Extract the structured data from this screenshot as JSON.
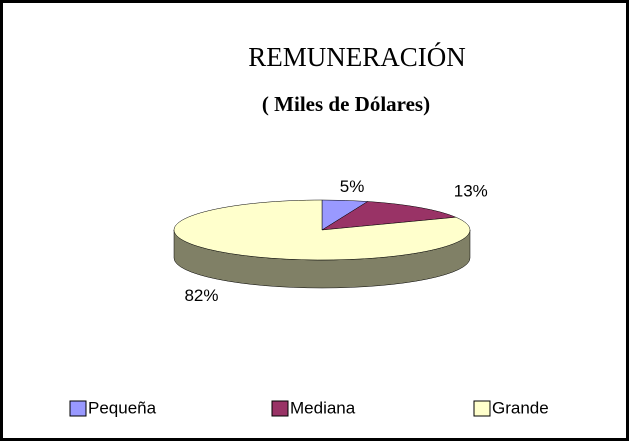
{
  "chart_data": {
    "type": "pie3d",
    "title": "REMUNERACIÓN",
    "subtitle": "( Miles de Dólares)",
    "categories": [
      "Pequeña",
      "Mediana",
      "Grande"
    ],
    "values": [
      5,
      13,
      82
    ],
    "value_labels": [
      "5%",
      "13%",
      "82%"
    ],
    "colors": [
      "#9999ff",
      "#993366",
      "#ffffcc"
    ],
    "legend": "bottom"
  }
}
